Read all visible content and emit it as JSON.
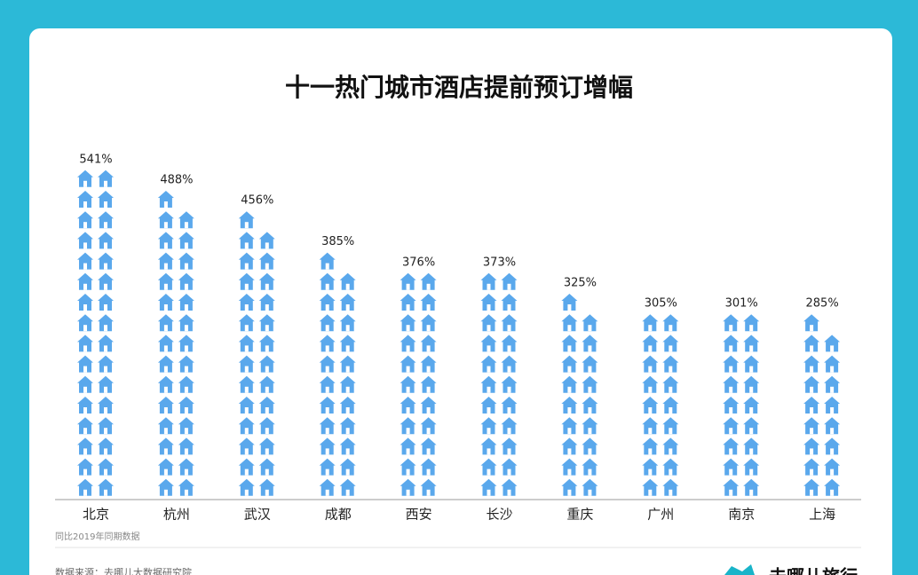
{
  "chart_data": {
    "type": "pictograph",
    "title": "十一热门城市酒店提前预订增幅",
    "categories": [
      "北京",
      "杭州",
      "武汉",
      "成都",
      "西安",
      "长沙",
      "重庆",
      "广州",
      "南京",
      "上海"
    ],
    "values": [
      541,
      488,
      456,
      385,
      376,
      373,
      325,
      305,
      301,
      285
    ],
    "value_labels": [
      "541%",
      "488%",
      "456%",
      "385%",
      "376%",
      "373%",
      "325%",
      "305%",
      "301%",
      "285%"
    ],
    "color": "#5aa8ec",
    "note": "同比2019年同期数据",
    "source": "数据来源：去哪儿大数据研究院",
    "brand": "去哪儿旅行"
  }
}
